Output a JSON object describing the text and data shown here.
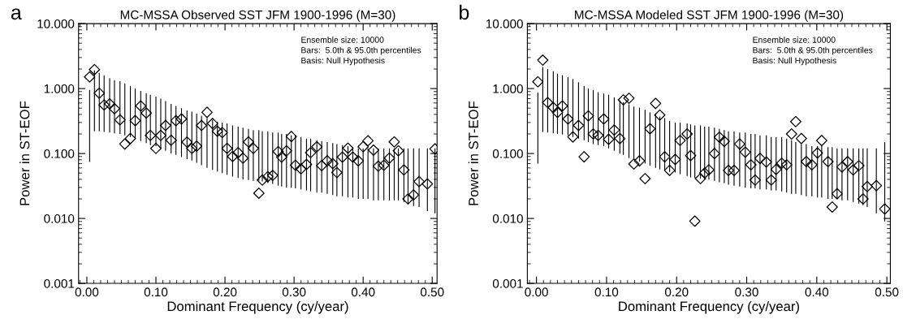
{
  "chart_data": [
    {
      "type": "scatter",
      "title": "MC-MSSA Observed SST JFM 1900-1996 (M=30)",
      "xlabel": "Dominant Frequency (cy/year)",
      "ylabel": "Power in ST-EOF",
      "log": "y",
      "grid": false,
      "annotations": [
        "a",
        "Ensemble size: 10000\nBars:  5.0th & 95.0th percentiles\nBasis: Null Hypothesis"
      ],
      "xlim": [
        -0.012,
        0.507
      ],
      "xticks": [
        {
          "value": 0,
          "label": "0.00"
        },
        {
          "value": 0.1,
          "label": "0.10"
        },
        {
          "value": 0.2,
          "label": "0.20"
        },
        {
          "value": 0.3,
          "label": "0.30"
        },
        {
          "value": 0.4,
          "label": "0.40"
        },
        {
          "value": 0.5,
          "label": "0.50"
        }
      ],
      "ylim": [
        0.001,
        10
      ],
      "yticks": [
        {
          "value": 0.001,
          "label": "0.001"
        },
        {
          "value": 0.01,
          "label": "0.010"
        },
        {
          "value": 0.1,
          "label": "0.100"
        },
        {
          "value": 1,
          "label": "1.000"
        },
        {
          "value": 10,
          "label": "10.000"
        }
      ],
      "x": [
        0.004,
        0.011,
        0.018,
        0.025,
        0.033,
        0.04,
        0.048,
        0.055,
        0.063,
        0.07,
        0.078,
        0.086,
        0.092,
        0.1,
        0.107,
        0.114,
        0.122,
        0.129,
        0.137,
        0.145,
        0.152,
        0.159,
        0.166,
        0.174,
        0.182,
        0.189,
        0.196,
        0.203,
        0.211,
        0.219,
        0.226,
        0.234,
        0.241,
        0.249,
        0.254,
        0.262,
        0.269,
        0.277,
        0.282,
        0.289,
        0.296,
        0.302,
        0.31,
        0.318,
        0.324,
        0.333,
        0.34,
        0.348,
        0.356,
        0.362,
        0.37,
        0.378,
        0.385,
        0.393,
        0.4,
        0.407,
        0.415,
        0.422,
        0.43,
        0.438,
        0.445,
        0.451,
        0.459,
        0.465,
        0.473,
        0.481,
        0.493,
        0.504
      ],
      "series": [
        {
          "color": "#000000",
          "marker": "diamond",
          "values": [
            1.51,
            1.96,
            0.85,
            0.56,
            0.58,
            0.49,
            0.33,
            0.14,
            0.17,
            0.32,
            0.54,
            0.42,
            0.19,
            0.12,
            0.19,
            0.27,
            0.16,
            0.32,
            0.34,
            0.15,
            0.12,
            0.13,
            0.27,
            0.43,
            0.29,
            0.22,
            0.21,
            0.12,
            0.09,
            0.103,
            0.085,
            0.151,
            0.12,
            0.0245,
            0.039,
            0.044,
            0.046,
            0.107,
            0.088,
            0.11,
            0.183,
            0.066,
            0.058,
            0.068,
            0.103,
            0.127,
            0.065,
            0.077,
            0.07,
            0.051,
            0.088,
            0.121,
            0.088,
            0.077,
            0.127,
            0.157,
            0.113,
            0.064,
            0.066,
            0.085,
            0.151,
            0.11,
            0.056,
            0.02,
            0.023,
            0.037,
            0.034,
            0.118
          ]
        },
        {
          "type": "bar",
          "color": "#000000",
          "base": [
            0.074,
            0.22,
            0.22,
            0.215,
            0.21,
            0.205,
            0.2,
            0.19,
            0.18,
            0.165,
            0.155,
            0.145,
            0.135,
            0.13,
            0.12,
            0.11,
            0.1,
            0.095,
            0.088,
            0.082,
            0.078,
            0.072,
            0.066,
            0.06,
            0.056,
            0.053,
            0.05,
            0.047,
            0.044,
            0.042,
            0.04,
            0.039,
            0.038,
            0.038,
            0.037,
            0.035,
            0.034,
            0.032,
            0.031,
            0.03,
            0.03,
            0.029,
            0.028,
            0.027,
            0.026,
            0.025,
            0.025,
            0.024,
            0.023,
            0.022,
            0.022,
            0.021,
            0.021,
            0.02,
            0.02,
            0.02,
            0.019,
            0.019,
            0.019,
            0.019,
            0.019,
            0.019,
            0.018,
            0.017,
            0.0155,
            0.015,
            0.013,
            0.012
          ],
          "values": [
            0.876,
            1.68,
            1.53,
            1.385,
            1.24,
            1.145,
            1.1,
            1.01,
            0.92,
            0.835,
            0.765,
            0.705,
            0.665,
            0.62,
            0.58,
            0.53,
            0.48,
            0.445,
            0.412,
            0.378,
            0.362,
            0.338,
            0.314,
            0.29,
            0.274,
            0.257,
            0.25,
            0.243,
            0.226,
            0.218,
            0.21,
            0.201,
            0.192,
            0.192,
            0.183,
            0.185,
            0.176,
            0.178,
            0.169,
            0.17,
            0.16,
            0.161,
            0.152,
            0.143,
            0.144,
            0.135,
            0.13,
            0.126,
            0.122,
            0.118,
            0.113,
            0.109,
            0.104,
            0.1,
            0.1,
            0.1,
            0.101,
            0.101,
            0.101,
            0.101,
            0.101,
            0.101,
            0.102,
            0.103,
            0.1045,
            0.105,
            0.107,
            0.108
          ]
        }
      ]
    },
    {
      "type": "scatter",
      "title": "MC-MSSA Modeled SST JFM 1900-1996 (M=30)",
      "xlabel": "Dominant Frequency (cy/year)",
      "ylabel": "Power in ST-EOF",
      "log": "y",
      "grid": false,
      "annotations": [
        "b",
        "Ensemble size: 10000\nBars:  5.0th & 95.0th percentiles\nBasis: Null Hypothesis"
      ],
      "xlim": [
        -0.013,
        0.505
      ],
      "xticks": [
        {
          "value": 0,
          "label": "0.00"
        },
        {
          "value": 0.1,
          "label": "0.10"
        },
        {
          "value": 0.2,
          "label": "0.20"
        },
        {
          "value": 0.3,
          "label": "0.30"
        },
        {
          "value": 0.4,
          "label": "0.40"
        },
        {
          "value": 0.5,
          "label": "0.50"
        }
      ],
      "ylim": [
        0.001,
        10
      ],
      "yticks": [
        {
          "value": 0.001,
          "label": "0.001"
        },
        {
          "value": 0.01,
          "label": "0.010"
        },
        {
          "value": 0.1,
          "label": "0.100"
        },
        {
          "value": 1,
          "label": "1.000"
        },
        {
          "value": 10,
          "label": "10.000"
        }
      ],
      "x": [
        0.002,
        0.009,
        0.016,
        0.024,
        0.03,
        0.037,
        0.045,
        0.052,
        0.06,
        0.068,
        0.074,
        0.081,
        0.088,
        0.096,
        0.103,
        0.111,
        0.119,
        0.124,
        0.132,
        0.139,
        0.147,
        0.155,
        0.162,
        0.17,
        0.176,
        0.183,
        0.19,
        0.198,
        0.205,
        0.215,
        0.22,
        0.226,
        0.234,
        0.24,
        0.246,
        0.254,
        0.261,
        0.268,
        0.274,
        0.282,
        0.29,
        0.298,
        0.306,
        0.312,
        0.319,
        0.328,
        0.335,
        0.342,
        0.35,
        0.357,
        0.364,
        0.37,
        0.378,
        0.385,
        0.393,
        0.401,
        0.407,
        0.416,
        0.422,
        0.429,
        0.436,
        0.444,
        0.452,
        0.46,
        0.466,
        0.472,
        0.485,
        0.497
      ],
      "series": [
        {
          "color": "#000000",
          "marker": "diamond",
          "values": [
            1.27,
            2.74,
            0.61,
            0.51,
            0.43,
            0.54,
            0.34,
            0.18,
            0.27,
            0.089,
            0.38,
            0.2,
            0.19,
            0.34,
            0.165,
            0.23,
            0.17,
            0.67,
            0.71,
            0.069,
            0.077,
            0.041,
            0.24,
            0.59,
            0.39,
            0.089,
            0.055,
            0.081,
            0.159,
            0.2,
            0.093,
            0.0091,
            0.041,
            0.05,
            0.056,
            0.1,
            0.178,
            0.154,
            0.055,
            0.055,
            0.14,
            0.105,
            0.067,
            0.039,
            0.084,
            0.074,
            0.039,
            0.057,
            0.071,
            0.067,
            0.2,
            0.31,
            0.17,
            0.075,
            0.067,
            0.102,
            0.158,
            0.075,
            0.015,
            0.024,
            0.062,
            0.075,
            0.056,
            0.065,
            0.02,
            0.031,
            0.032,
            0.014
          ]
        },
        {
          "type": "bar",
          "color": "#000000",
          "base": [
            0.07,
            0.215,
            0.21,
            0.205,
            0.2,
            0.195,
            0.19,
            0.18,
            0.17,
            0.16,
            0.15,
            0.14,
            0.135,
            0.13,
            0.12,
            0.11,
            0.1,
            0.095,
            0.085,
            0.08,
            0.075,
            0.07,
            0.065,
            0.06,
            0.057,
            0.054,
            0.052,
            0.051,
            0.048,
            0.045,
            0.043,
            0.042,
            0.041,
            0.04,
            0.04,
            0.038,
            0.036,
            0.035,
            0.033,
            0.032,
            0.031,
            0.03,
            0.029,
            0.029,
            0.028,
            0.028,
            0.027,
            0.027,
            0.026,
            0.025,
            0.024,
            0.024,
            0.023,
            0.022,
            0.022,
            0.021,
            0.021,
            0.02,
            0.02,
            0.02,
            0.019,
            0.019,
            0.018,
            0.017,
            0.016,
            0.015,
            0.012,
            0.009
          ],
          "values": [
            0.8,
            1.935,
            1.79,
            1.645,
            1.5,
            1.405,
            1.31,
            1.22,
            1.08,
            0.94,
            0.85,
            0.81,
            0.745,
            0.71,
            0.68,
            0.62,
            0.56,
            0.525,
            0.485,
            0.45,
            0.435,
            0.4,
            0.365,
            0.34,
            0.313,
            0.296,
            0.268,
            0.249,
            0.252,
            0.245,
            0.237,
            0.228,
            0.229,
            0.22,
            0.22,
            0.212,
            0.204,
            0.195,
            0.187,
            0.188,
            0.179,
            0.18,
            0.171,
            0.171,
            0.162,
            0.162,
            0.153,
            0.153,
            0.154,
            0.145,
            0.136,
            0.126,
            0.117,
            0.118,
            0.108,
            0.109,
            0.109,
            0.105,
            0.105,
            0.1,
            0.101,
            0.101,
            0.102,
            0.103,
            0.104,
            0.105,
            0.108,
            0.141
          ]
        }
      ]
    }
  ]
}
